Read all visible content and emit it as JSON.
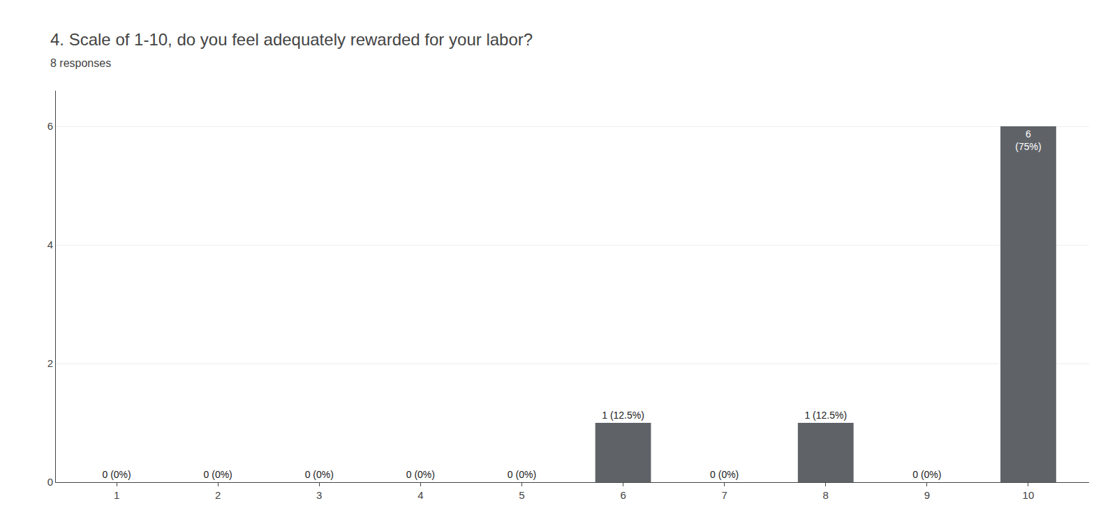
{
  "chart_data": {
    "type": "bar",
    "title": "4. Scale of 1-10, do you feel adequately rewarded for your labor?",
    "subtitle": "8 responses",
    "categories": [
      1,
      2,
      3,
      4,
      5,
      6,
      7,
      8,
      9,
      10
    ],
    "values": [
      0,
      0,
      0,
      0,
      0,
      1,
      0,
      1,
      0,
      6
    ],
    "data_labels": true,
    "value_labels": [
      "0 (0%)",
      "0 (0%)",
      "0 (0%)",
      "0 (0%)",
      "0 (0%)",
      "1 (12.5%)",
      "0 (0%)",
      "1 (12.5%)",
      "0 (0%)",
      "6\n(75%)"
    ],
    "color": "#5f6368",
    "ylim": [
      0,
      6.6
    ],
    "yticks": [
      0,
      2,
      4,
      6
    ],
    "grid": true
  }
}
